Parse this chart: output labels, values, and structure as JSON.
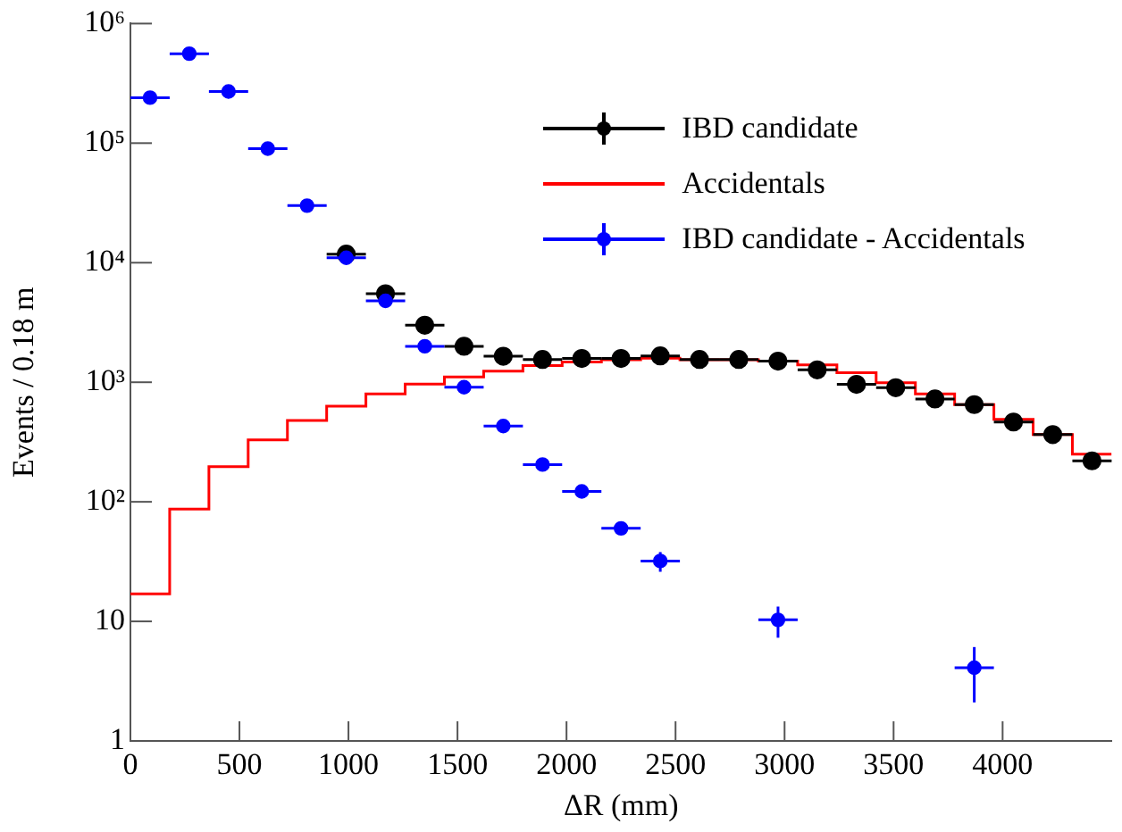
{
  "chart_data": {
    "type": "scatter",
    "xlabel": "ΔR (mm)",
    "ylabel": "Events / 0.18 m",
    "log": "y",
    "legend": "top right",
    "marker": "circle",
    "grid": false,
    "bins": [
      0,
      180,
      360,
      540,
      720,
      900,
      1080,
      1260,
      1440,
      1620,
      1800,
      1980,
      2160,
      2340,
      2520,
      2700,
      2880,
      3060,
      3240,
      3420,
      3600,
      3780,
      3960,
      4140,
      4320,
      4500
    ],
    "xlim": [
      0,
      4500
    ],
    "xticks": [
      0,
      500,
      1000,
      1500,
      2000,
      2500,
      3000,
      3500,
      4000
    ],
    "ylim": [
      1,
      1000000
    ],
    "yticks": [
      1,
      10,
      {
        "value": 100,
        "label": "10²"
      },
      {
        "value": 1000,
        "label": "10³"
      },
      {
        "value": 10000,
        "label": "10⁴"
      },
      {
        "value": 100000,
        "label": "10⁵"
      },
      {
        "value": 1000000,
        "label": "10⁶"
      }
    ],
    "series": [
      {
        "name": "IBD candidate",
        "type": "scatter",
        "color": "#000000",
        "x": [
          990,
          1170,
          1350,
          1530,
          1710,
          1890,
          2070,
          2250,
          2430,
          2610,
          2790,
          2970,
          3150,
          3330,
          3510,
          3690,
          3870,
          4050,
          4230,
          4410
        ],
        "values": [
          11800,
          5500,
          3000,
          2000,
          1650,
          1550,
          1580,
          1580,
          1660,
          1550,
          1550,
          1500,
          1270,
          960,
          900,
          725,
          650,
          465,
          365,
          220
        ],
        "xerrors": [
          90,
          90,
          90,
          90,
          90,
          90,
          90,
          90,
          90,
          90,
          90,
          90,
          90,
          90,
          90,
          90,
          90,
          90,
          90,
          90
        ]
      },
      {
        "name": "Accidentals",
        "type": "histogram",
        "color": "#ff0000",
        "values": [
          17,
          87,
          197,
          330,
          480,
          630,
          800,
          965,
          1110,
          1240,
          1380,
          1480,
          1540,
          1590,
          1540,
          1540,
          1500,
          1400,
          1200,
          990,
          800,
          650,
          490,
          365,
          250
        ]
      },
      {
        "name": "IBD candidate - Accidentals",
        "type": "scatter",
        "color": "#0000ff",
        "x": [
          90,
          270,
          450,
          630,
          810,
          990,
          1170,
          1350,
          1530,
          1710,
          1890,
          2070,
          2250,
          2430,
          2970,
          3870
        ],
        "values": [
          240000,
          560000,
          270000,
          90000,
          30000,
          11000,
          4800,
          2000,
          910,
          430,
          205,
          122,
          60,
          32,
          10.3,
          4.1
        ],
        "xerrors": [
          90,
          90,
          90,
          90,
          90,
          90,
          90,
          90,
          90,
          90,
          90,
          90,
          90,
          90,
          90,
          90
        ],
        "errors": [
          null,
          null,
          null,
          null,
          null,
          null,
          null,
          null,
          null,
          null,
          null,
          null,
          null,
          6,
          3,
          2
        ]
      }
    ]
  }
}
